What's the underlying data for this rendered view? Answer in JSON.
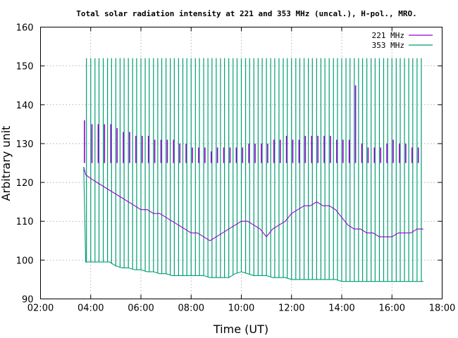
{
  "chart_data": {
    "type": "line",
    "title": "Total solar radiation intensity at 221 and 353 MHz (uncal.), H-pol., MRO.",
    "xlabel": "Time (UT)",
    "ylabel": "Arbitrary unit",
    "xlim": [
      2,
      18
    ],
    "ylim": [
      90,
      160
    ],
    "x_tick_labels": [
      "02:00",
      "04:00",
      "06:00",
      "08:00",
      "10:00",
      "12:00",
      "14:00",
      "16:00",
      "18:00"
    ],
    "y_tick_labels": [
      "90",
      "100",
      "110",
      "120",
      "130",
      "140",
      "150",
      "160"
    ],
    "grid": true,
    "legend_position": "top-right",
    "series": [
      {
        "name": "221 MHz",
        "color": "#9400d3",
        "x": [
          3.72,
          3.8,
          4.0,
          4.25,
          4.5,
          4.75,
          5.0,
          5.25,
          5.5,
          5.75,
          6.0,
          6.25,
          6.5,
          6.75,
          7.0,
          7.25,
          7.5,
          7.75,
          8.0,
          8.25,
          8.5,
          8.75,
          9.0,
          9.25,
          9.5,
          9.75,
          10.0,
          10.25,
          10.5,
          10.75,
          11.0,
          11.25,
          11.5,
          11.75,
          12.0,
          12.25,
          12.5,
          12.75,
          13.0,
          13.25,
          13.5,
          13.75,
          14.0,
          14.25,
          14.5,
          14.75,
          15.0,
          15.25,
          15.5,
          15.75,
          16.0,
          16.25,
          16.5,
          16.75,
          17.0,
          17.25
        ],
        "values": [
          124,
          122,
          121,
          120,
          119,
          118,
          117,
          116,
          115,
          114,
          113,
          113,
          112,
          112,
          111,
          110,
          109,
          108,
          107,
          107,
          106,
          105,
          106,
          107,
          108,
          109,
          110,
          110,
          109,
          108,
          106,
          108,
          109,
          110,
          112,
          113,
          114,
          114,
          115,
          114,
          114,
          113,
          111,
          109,
          108,
          108,
          107,
          107,
          106,
          106,
          106,
          107,
          107,
          107,
          108,
          108
        ]
      },
      {
        "name": "353 MHz",
        "color": "#009e73",
        "x": [
          3.72,
          3.8,
          4.0,
          4.25,
          4.5,
          4.75,
          5.0,
          5.25,
          5.5,
          5.75,
          6.0,
          6.25,
          6.5,
          6.75,
          7.0,
          7.25,
          7.5,
          7.75,
          8.0,
          8.25,
          8.5,
          8.75,
          9.0,
          9.25,
          9.5,
          9.75,
          10.0,
          10.25,
          10.5,
          10.75,
          11.0,
          11.25,
          11.5,
          11.75,
          12.0,
          12.25,
          12.5,
          12.75,
          13.0,
          13.25,
          13.5,
          13.75,
          14.0,
          14.25,
          14.5,
          14.75,
          15.0,
          15.25,
          15.5,
          15.75,
          16.0,
          16.25,
          16.5,
          16.75,
          17.0,
          17.25
        ],
        "values": [
          124,
          99.5,
          99.5,
          99.5,
          99.5,
          99.5,
          98.5,
          98,
          98,
          97.5,
          97.5,
          97,
          97,
          96.5,
          96.5,
          96,
          96,
          96,
          96,
          96,
          96,
          95.5,
          95.5,
          95.5,
          95.5,
          96.5,
          97,
          96.5,
          96,
          96,
          96,
          95.5,
          95.5,
          95.5,
          95,
          95,
          95,
          95,
          95,
          95,
          95,
          95,
          94.5,
          94.5,
          94.5,
          94.5,
          94.5,
          94.5,
          94.5,
          94.5,
          94.5,
          94.5,
          94.5,
          94.5,
          94.5,
          94.5
        ]
      }
    ],
    "calibration_pulses": [
      {
        "series": "353 MHz",
        "top": 152,
        "x": [
          3.83,
          4.0,
          4.17,
          4.33,
          4.5,
          4.67,
          4.83,
          5.0,
          5.17,
          5.33,
          5.5,
          5.67,
          5.83,
          6.0,
          6.17,
          6.33,
          6.5,
          6.67,
          6.83,
          7.0,
          7.17,
          7.33,
          7.5,
          7.67,
          7.83,
          8.0,
          8.17,
          8.33,
          8.5,
          8.67,
          8.83,
          9.0,
          9.17,
          9.33,
          9.5,
          9.67,
          9.83,
          10.0,
          10.17,
          10.33,
          10.5,
          10.67,
          10.83,
          11.0,
          11.17,
          11.33,
          11.5,
          11.67,
          11.83,
          12.0,
          12.17,
          12.33,
          12.5,
          12.67,
          12.83,
          13.0,
          13.17,
          13.33,
          13.5,
          13.67,
          13.83,
          14.0,
          14.17,
          14.33,
          14.5,
          14.67,
          14.83,
          15.0,
          15.17,
          15.33,
          15.5,
          15.67,
          15.83,
          16.0,
          16.17,
          16.33,
          16.5,
          16.67,
          16.83,
          17.0,
          17.17
        ]
      },
      {
        "series": "221 MHz",
        "x": [
          3.75,
          4.05,
          4.3,
          4.55,
          4.8,
          5.05,
          5.3,
          5.55,
          5.8,
          6.05,
          6.3,
          6.55,
          6.8,
          7.05,
          7.3,
          7.55,
          7.8,
          8.05,
          8.3,
          8.55,
          8.8,
          9.05,
          9.3,
          9.55,
          9.8,
          10.05,
          10.3,
          10.55,
          10.8,
          11.05,
          11.3,
          11.55,
          11.8,
          12.05,
          12.3,
          12.55,
          12.8,
          13.05,
          13.3,
          13.55,
          13.8,
          14.05,
          14.3,
          14.55,
          14.8,
          15.05,
          15.3,
          15.55,
          15.8,
          16.05,
          16.3,
          16.55,
          16.8,
          17.05
        ],
        "top": [
          136,
          135,
          135,
          135,
          135,
          134,
          133,
          133,
          132,
          132,
          132,
          131,
          131,
          131,
          131,
          130,
          130,
          129,
          129,
          129,
          128,
          129,
          129,
          129,
          129,
          129,
          130,
          130,
          130,
          130,
          131,
          131,
          132,
          131,
          131,
          132,
          132,
          132,
          132,
          132,
          131,
          131,
          131,
          145,
          130,
          129,
          129,
          129,
          130,
          131,
          130,
          130,
          129,
          129
        ]
      }
    ]
  }
}
